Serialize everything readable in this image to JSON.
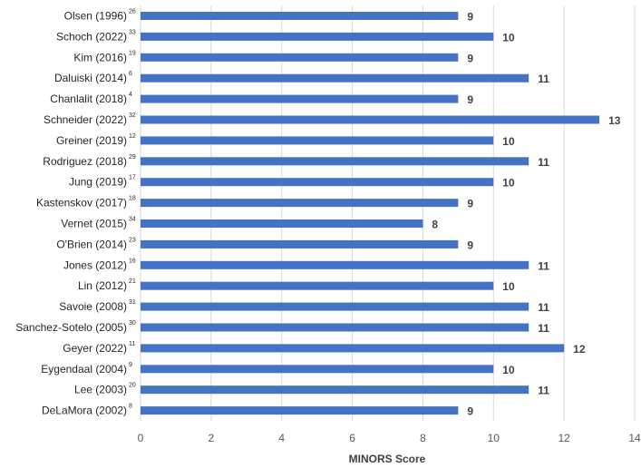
{
  "chart_data": {
    "type": "bar",
    "orientation": "horizontal",
    "xlabel": "MINORS Score",
    "xlim": [
      0,
      14
    ],
    "xticks": [
      0,
      2,
      4,
      6,
      8,
      10,
      12,
      14
    ],
    "grid": true,
    "bar_color": "#4472c4",
    "categories": [
      {
        "label": "Olsen (1996)",
        "ref": "26"
      },
      {
        "label": "Schoch (2022)",
        "ref": "33"
      },
      {
        "label": "Kim (2016)",
        "ref": "19"
      },
      {
        "label": "Daluiski (2014)",
        "ref": "6"
      },
      {
        "label": "Chanlalit (2018)",
        "ref": "4"
      },
      {
        "label": "Schneider (2022)",
        "ref": "32"
      },
      {
        "label": "Greiner (2019)",
        "ref": "12"
      },
      {
        "label": "Rodriguez (2018)",
        "ref": "29"
      },
      {
        "label": "Jung (2019)",
        "ref": "17"
      },
      {
        "label": "Kastenskov (2017)",
        "ref": "18"
      },
      {
        "label": "Vernet (2015)",
        "ref": "34"
      },
      {
        "label": "O'Brien (2014)",
        "ref": "23"
      },
      {
        "label": "Jones (2012)",
        "ref": "16"
      },
      {
        "label": "Lin (2012)",
        "ref": "21"
      },
      {
        "label": "Savoie (2008)",
        "ref": "31"
      },
      {
        "label": "Sanchez-Sotelo (2005)",
        "ref": "30"
      },
      {
        "label": "Geyer (2022)",
        "ref": "11"
      },
      {
        "label": "Eygendaal (2004)",
        "ref": "9"
      },
      {
        "label": "Lee (2003)",
        "ref": "20"
      },
      {
        "label": "DeLaMora (2002)",
        "ref": "8"
      }
    ],
    "values": [
      9,
      10,
      9,
      11,
      9,
      13,
      10,
      11,
      10,
      9,
      8,
      9,
      11,
      10,
      11,
      11,
      12,
      10,
      11,
      9
    ]
  }
}
